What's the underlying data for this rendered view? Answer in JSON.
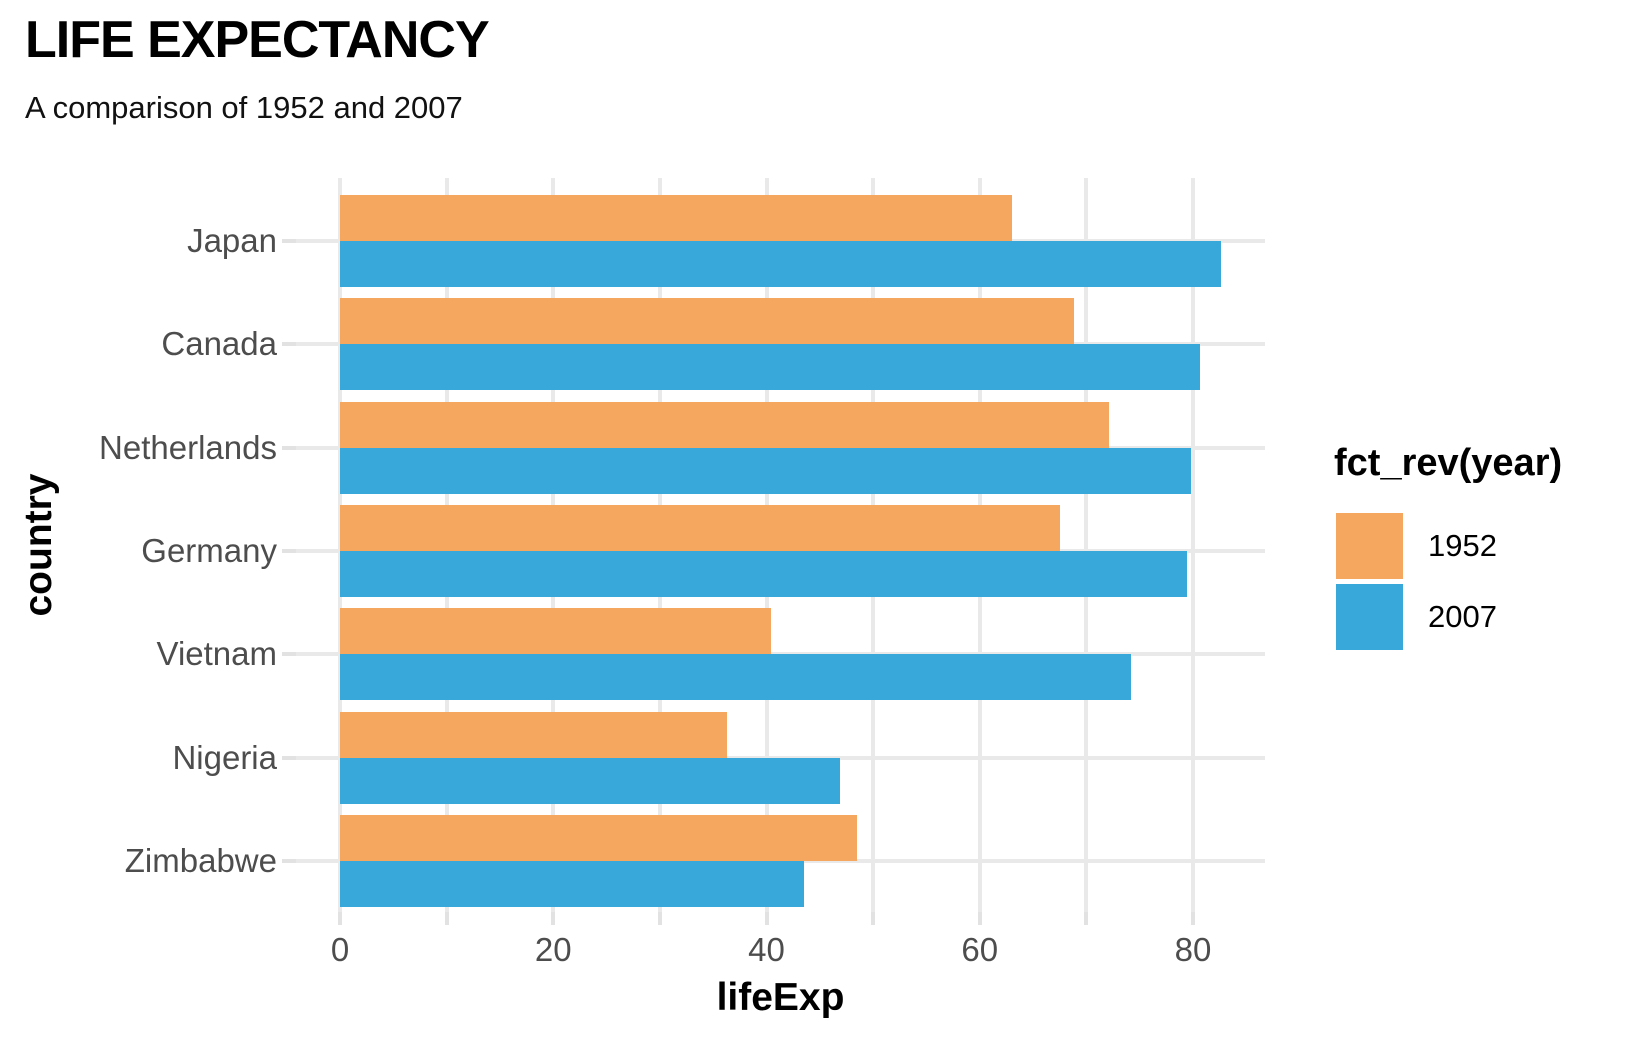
{
  "header": {
    "title": "LIFE EXPECTANCY",
    "subtitle": "A comparison of 1952 and 2007"
  },
  "chart_data": {
    "type": "bar",
    "orientation": "horizontal",
    "title": "LIFE EXPECTANCY",
    "subtitle": "A comparison of 1952 and 2007",
    "xlabel": "lifeExp",
    "ylabel": "country",
    "categories": [
      "Japan",
      "Canada",
      "Netherlands",
      "Germany",
      "Vietnam",
      "Nigeria",
      "Zimbabwe"
    ],
    "series": [
      {
        "name": "1952",
        "color": "#f5a65f",
        "values": [
          63.0,
          68.8,
          72.1,
          67.5,
          40.4,
          36.3,
          48.5
        ]
      },
      {
        "name": "2007",
        "color": "#38a8db",
        "values": [
          82.6,
          80.7,
          79.8,
          79.4,
          74.2,
          46.9,
          43.5
        ]
      }
    ],
    "xlim": [
      -4.1,
      86.7
    ],
    "x_major_tick_labels": [
      "0",
      "20",
      "40",
      "60",
      "80"
    ],
    "x_major_tick_values": [
      0,
      20,
      40,
      60,
      80
    ],
    "x_minor_tick_values": [
      10,
      30,
      50,
      70
    ],
    "grid": "vertical lines every 10 units and horizontal lines at category centers, light gray, no panel border",
    "legend_position": "right"
  },
  "legend": {
    "title": "fct_rev(year)",
    "entries": [
      {
        "label": "1952",
        "color": "#f5a65f"
      },
      {
        "label": "2007",
        "color": "#38a8db"
      }
    ]
  },
  "colors": {
    "background": "#ffffff",
    "gridline": "#e9e9e9",
    "tick": "#e2e2e2",
    "axis_text": "#4d4d4d",
    "title_text": "#000000"
  }
}
